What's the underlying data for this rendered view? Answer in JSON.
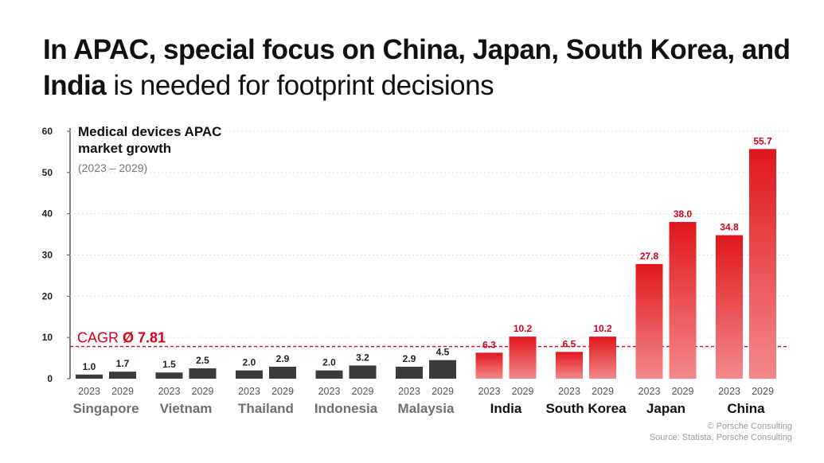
{
  "headline": {
    "bold": "In APAC, special focus on China, Japan, South Korea, and India",
    "regular": " is needed for footprint decisions"
  },
  "subtitle": {
    "line1": "Medical devices APAC",
    "line2": "market growth",
    "period": "(2023 – 2029)"
  },
  "cagr": {
    "prefix": "CAGR ",
    "value_label": "Ø 7.81",
    "value": 7.81
  },
  "footer": {
    "copyright": "© Porsche Consulting",
    "source": "Source: Statista, Porsche Consulting"
  },
  "colors": {
    "dark_bar": "#3a3a3f",
    "red_top": "#e0171c",
    "red_bottom": "#f3898b",
    "red_text": "#d5001c",
    "grey_label": "#6f6f6f",
    "axis": "#555555"
  },
  "chart_data": {
    "type": "bar",
    "ylim": [
      0,
      60
    ],
    "yticks": [
      "0",
      "10",
      "20",
      "30",
      "40",
      "50",
      "60"
    ],
    "year_labels": [
      "2023",
      "2029"
    ],
    "grid": true,
    "categories": [
      {
        "name": "Singapore",
        "highlight": false,
        "values": [
          1.0,
          1.7
        ],
        "labels": [
          "1.0",
          "1.7"
        ]
      },
      {
        "name": "Vietnam",
        "highlight": false,
        "values": [
          1.5,
          2.5
        ],
        "labels": [
          "1.5",
          "2.5"
        ]
      },
      {
        "name": "Thailand",
        "highlight": false,
        "values": [
          2.0,
          2.9
        ],
        "labels": [
          "2.0",
          "2.9"
        ]
      },
      {
        "name": "Indonesia",
        "highlight": false,
        "values": [
          2.0,
          3.2
        ],
        "labels": [
          "2.0",
          "3.2"
        ]
      },
      {
        "name": "Malaysia",
        "highlight": false,
        "values": [
          2.9,
          4.5
        ],
        "labels": [
          "2.9",
          "4.5"
        ]
      },
      {
        "name": "India",
        "highlight": true,
        "values": [
          6.3,
          10.2
        ],
        "labels": [
          "6.3",
          "10.2"
        ]
      },
      {
        "name": "South Korea",
        "highlight": true,
        "values": [
          6.5,
          10.2
        ],
        "labels": [
          "6.5",
          "10.2"
        ]
      },
      {
        "name": "Japan",
        "highlight": true,
        "values": [
          27.8,
          38.0
        ],
        "labels": [
          "27.8",
          "38.0"
        ]
      },
      {
        "name": "China",
        "highlight": true,
        "values": [
          34.8,
          55.7
        ],
        "labels": [
          "34.8",
          "55.7"
        ]
      }
    ]
  }
}
